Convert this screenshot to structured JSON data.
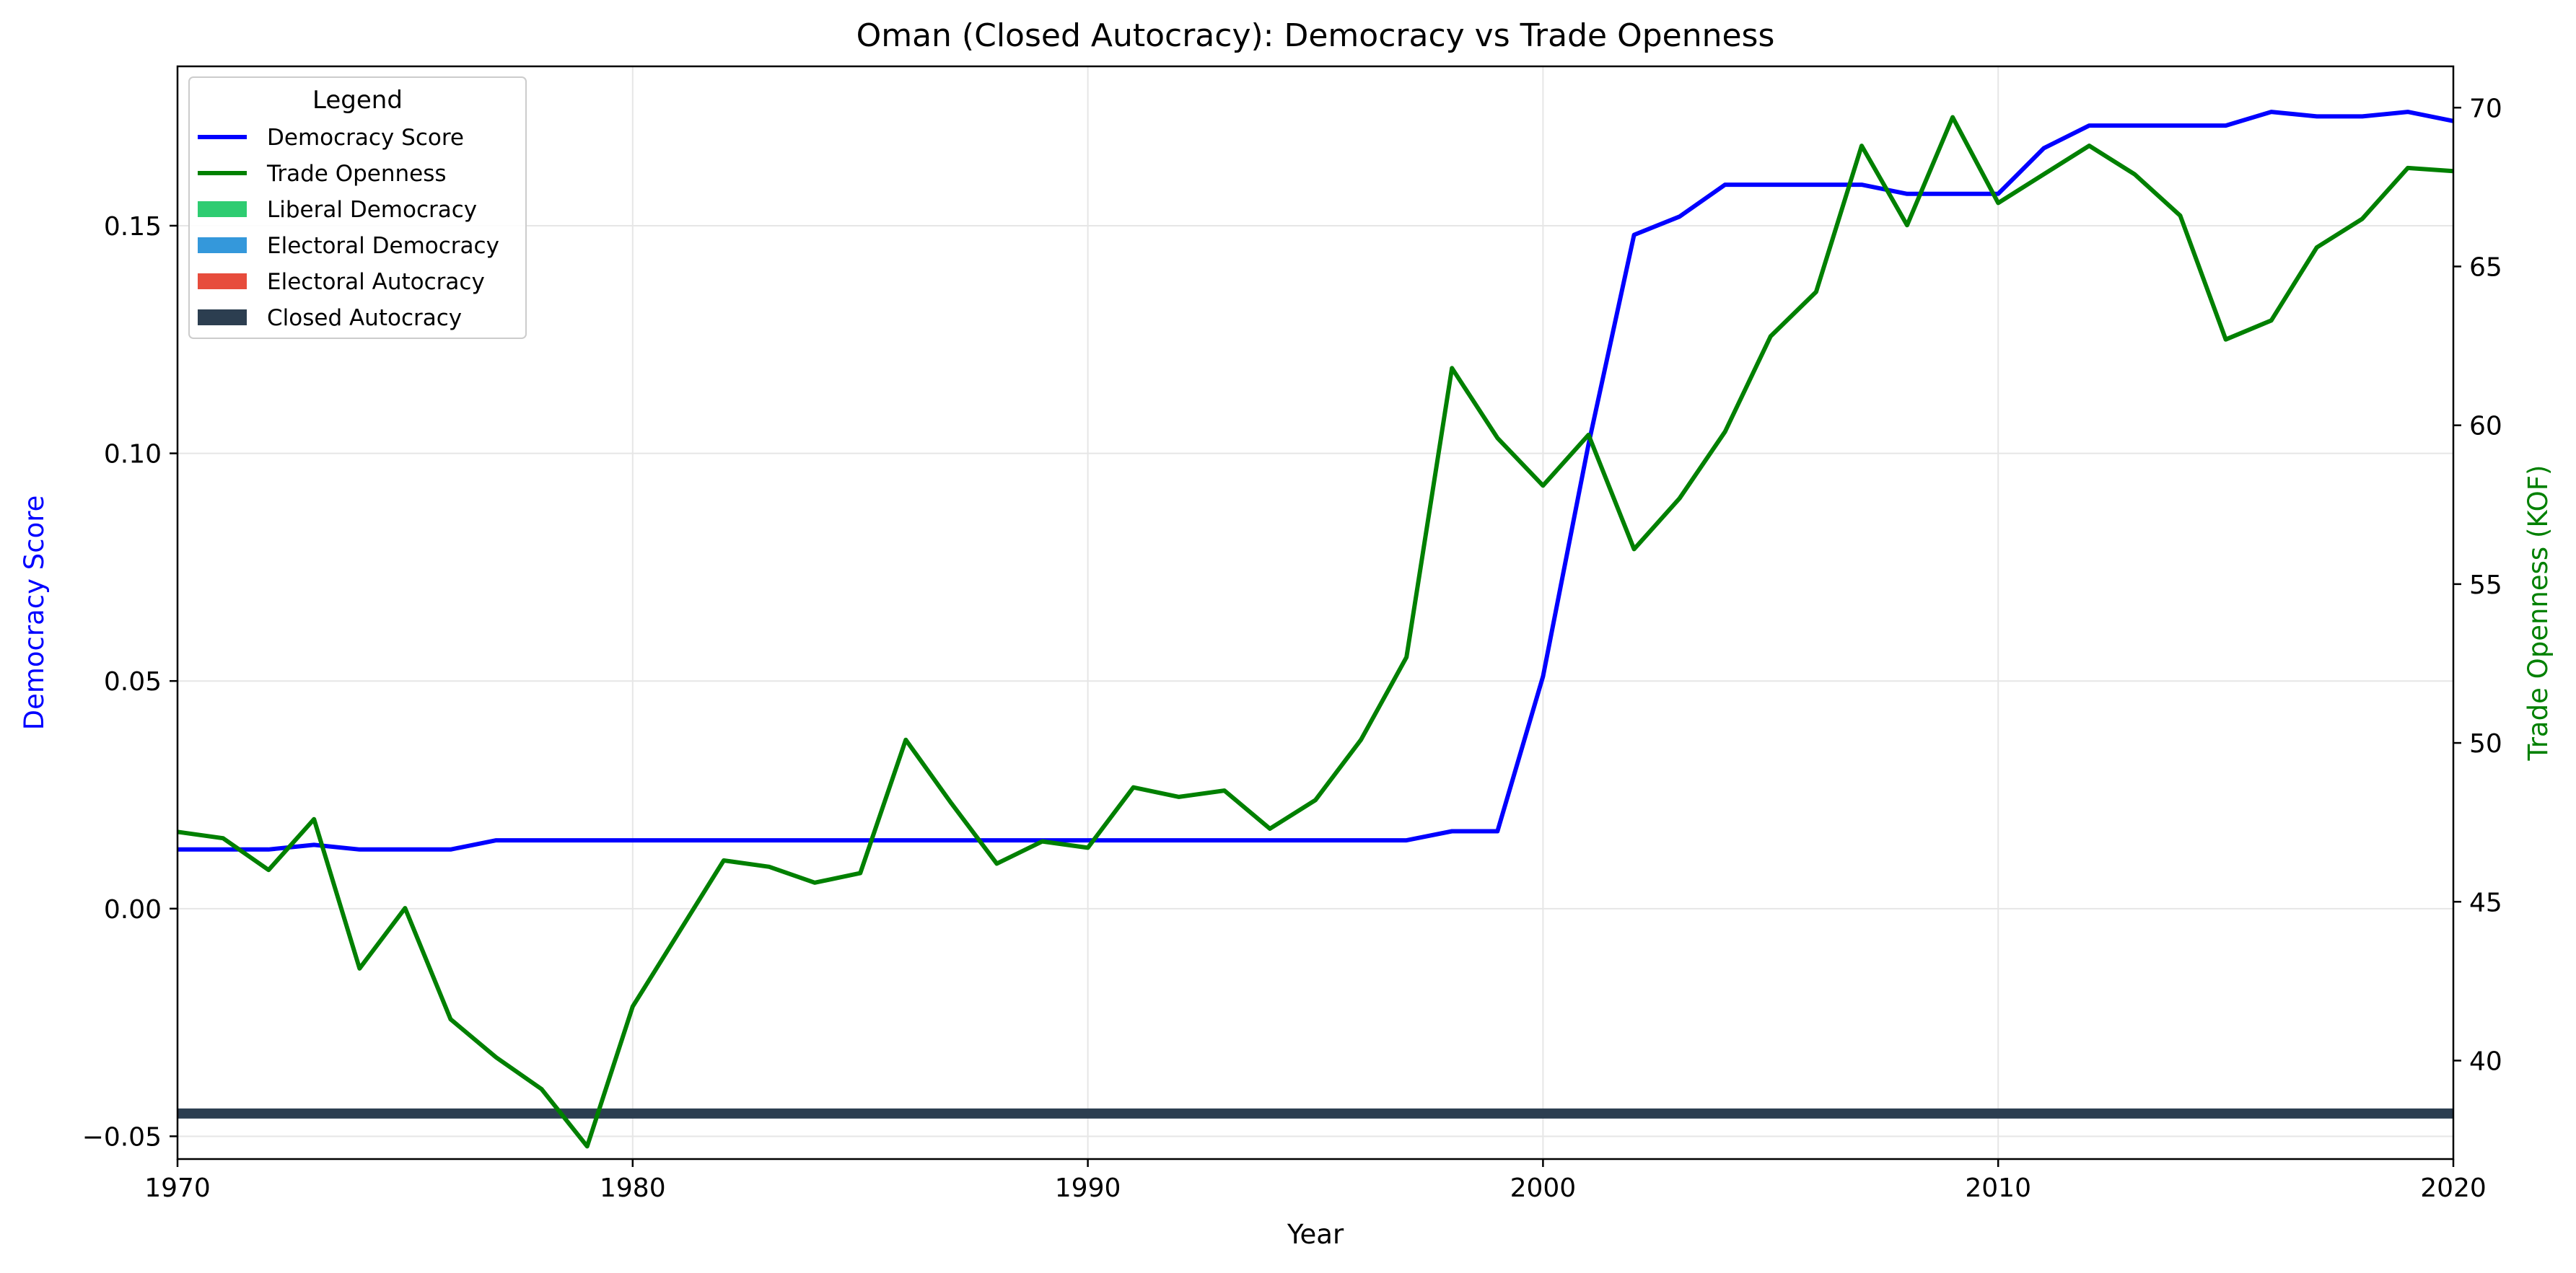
{
  "chart_data": {
    "type": "line",
    "title": "Oman (Closed Autocracy): Democracy vs Trade Openness",
    "xlabel": "Year",
    "ylabel_left": "Democracy Score",
    "ylabel_right": "Trade Openness (KOF)",
    "xlim": [
      1970,
      2020
    ],
    "ylim_left": [
      -0.055,
      0.185
    ],
    "ylim_right": [
      36.9,
      71.3
    ],
    "x_ticks": [
      "1970",
      "1980",
      "1990",
      "2000",
      "2010",
      "2020"
    ],
    "y_left_ticks": [
      "−0.05",
      "0.00",
      "0.05",
      "0.10",
      "0.15"
    ],
    "y_right_ticks": [
      "40",
      "45",
      "50",
      "55",
      "60",
      "65",
      "70"
    ],
    "grid": true,
    "legend_position": "top-left",
    "legend_title": "Legend",
    "legend": [
      {
        "label": "Democracy Score",
        "kind": "line",
        "color": "#0000ff"
      },
      {
        "label": "Trade Openness",
        "kind": "line",
        "color": "#008000"
      },
      {
        "label": "Liberal Democracy",
        "kind": "patch",
        "color": "#2ecc71"
      },
      {
        "label": "Electoral Democracy",
        "kind": "patch",
        "color": "#3498db"
      },
      {
        "label": "Electoral Autocracy",
        "kind": "patch",
        "color": "#e74c3c"
      },
      {
        "label": "Closed Autocracy",
        "kind": "patch",
        "color": "#2c3e50"
      }
    ],
    "regime_band": {
      "label": "Closed Autocracy",
      "x_range": [
        1970,
        2020
      ],
      "y_value": -0.045,
      "color": "#2c3e50"
    },
    "x": [
      1970,
      1971,
      1972,
      1973,
      1974,
      1975,
      1976,
      1977,
      1978,
      1979,
      1980,
      1981,
      1982,
      1983,
      1984,
      1985,
      1986,
      1987,
      1988,
      1989,
      1990,
      1991,
      1992,
      1993,
      1994,
      1995,
      1996,
      1997,
      1998,
      1999,
      2000,
      2001,
      2002,
      2003,
      2004,
      2005,
      2006,
      2007,
      2008,
      2009,
      2010,
      2011,
      2012,
      2013,
      2014,
      2015,
      2016,
      2017,
      2018,
      2019,
      2020
    ],
    "series": [
      {
        "name": "Democracy Score",
        "axis": "left",
        "color": "#0000ff",
        "values": [
          0.013,
          0.013,
          0.013,
          0.014,
          0.013,
          0.013,
          0.013,
          0.015,
          0.015,
          0.015,
          0.015,
          0.015,
          0.015,
          0.015,
          0.015,
          0.015,
          0.015,
          0.015,
          0.015,
          0.015,
          0.015,
          0.015,
          0.015,
          0.015,
          0.015,
          0.015,
          0.015,
          0.015,
          0.017,
          0.017,
          0.051,
          0.102,
          0.148,
          0.152,
          0.159,
          0.159,
          0.159,
          0.159,
          0.157,
          0.157,
          0.157,
          0.167,
          0.172,
          0.172,
          0.172,
          0.172,
          0.175,
          0.174,
          0.174,
          0.175,
          0.173
        ]
      },
      {
        "name": "Trade Openness",
        "axis": "right",
        "color": "#008000",
        "values": [
          47.2,
          47.0,
          46.0,
          47.6,
          42.9,
          44.8,
          41.3,
          40.1,
          39.1,
          37.3,
          41.7,
          44.0,
          46.3,
          46.1,
          45.6,
          45.9,
          50.1,
          48.1,
          46.2,
          46.9,
          46.7,
          48.6,
          48.3,
          48.5,
          47.3,
          48.2,
          50.1,
          52.7,
          61.8,
          59.6,
          58.1,
          59.7,
          56.1,
          57.7,
          59.8,
          62.8,
          64.2,
          68.8,
          66.3,
          69.7,
          67.0,
          67.9,
          68.8,
          67.9,
          66.6,
          62.7,
          63.3,
          65.6,
          66.5,
          68.1,
          68.0
        ]
      }
    ]
  }
}
